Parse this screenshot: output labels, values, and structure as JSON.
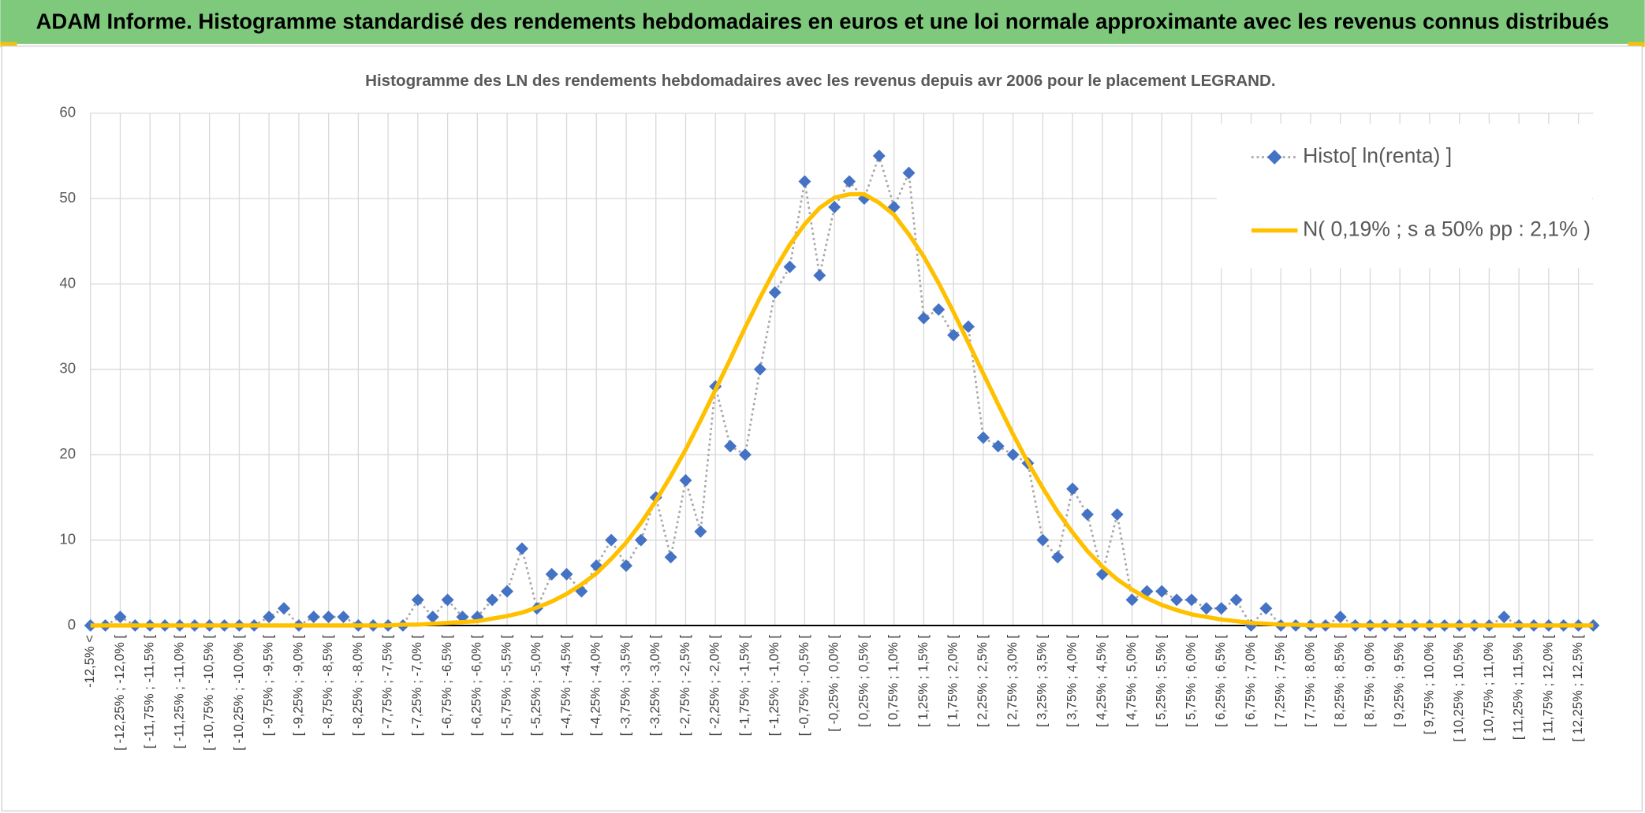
{
  "header": {
    "title": "ADAM Informe. Histogramme standardisé des rendements hebdomadaires en euros et une loi normale approximante avec les revenus connus distribués"
  },
  "chart_data": {
    "type": "line",
    "title": "Histogramme des LN des rendements hebdomadaires avec les revenus depuis avr 2006 pour le placement LEGRAND.",
    "categories": [
      "-12,5% <",
      null,
      "[ -12,25% ; -12,0% [",
      null,
      "[ -11,75% ; -11,5% [",
      null,
      "[ -11,25% ; -11,0% [",
      null,
      "[ -10,75% ; -10,5% [",
      null,
      "[ -10,25% ; -10,0% [",
      null,
      "[ -9,75% ; -9,5% [",
      null,
      "[ -9,25% ; -9,0% [",
      null,
      "[ -8,75% ; -8,5% [",
      null,
      "[ -8,25% ; -8,0% [",
      null,
      "[ -7,75% ; -7,5% [",
      null,
      "[ -7,25% ; -7,0% [",
      null,
      "[ -6,75% ; -6,5% [",
      null,
      "[ -6,25% ; -6,0% [",
      null,
      "[ -5,75% ; -5,5% [",
      null,
      "[ -5,25% ; -5,0% [",
      null,
      "[ -4,75% ; -4,5% [",
      null,
      "[ -4,25% ; -4,0% [",
      null,
      "[ -3,75% ; -3,5% [",
      null,
      "[ -3,25% ; -3,0% [",
      null,
      "[ -2,75% ; -2,5% [",
      null,
      "[ -2,25% ; -2,0% [",
      null,
      "[ -1,75% ; -1,5% [",
      null,
      "[ -1,25% ; -1,0% [",
      null,
      "[ -0,75% ; -0,5% [",
      null,
      "[ -0,25% ; 0,0% [",
      null,
      "[ 0,25% ; 0,5% [",
      null,
      "[ 0,75% ; 1,0% [",
      null,
      "[ 1,25% ; 1,5% [",
      null,
      "[ 1,75% ; 2,0% [",
      null,
      "[ 2,25% ; 2,5% [",
      null,
      "[ 2,75% ; 3,0% [",
      null,
      "[ 3,25% ; 3,5% [",
      null,
      "[ 3,75% ; 4,0% [",
      null,
      "[ 4,25% ; 4,5% [",
      null,
      "[ 4,75% ; 5,0% [",
      null,
      "[ 5,25% ; 5,5% [",
      null,
      "[ 5,75% ; 6,0% [",
      null,
      "[ 6,25% ; 6,5% [",
      null,
      "[ 6,75% ; 7,0% [",
      null,
      "[ 7,25% ; 7,5% [",
      null,
      "[ 7,75% ; 8,0% [",
      null,
      "[ 8,25% ; 8,5% [",
      null,
      "[ 8,75% ; 9,0% [",
      null,
      "[ 9,25% ; 9,5% [",
      null,
      "[ 9,75% ; 10,0% [",
      null,
      "[ 10,25% ; 10,5% [",
      null,
      "[ 10,75% ; 11,0% [",
      null,
      "[ 11,25% ; 11,5% [",
      null,
      "[ 11,75% ; 12,0% [",
      null,
      "[ 12,25% ; 12,5% [",
      null
    ],
    "series": [
      {
        "name": "Histo[ ln(renta) ]",
        "color": "#4472c4",
        "line_color": "#a6a6a6",
        "marker": "diamond",
        "values": [
          0,
          0,
          1,
          0,
          0,
          0,
          0,
          0,
          0,
          0,
          0,
          0,
          1,
          2,
          0,
          1,
          1,
          1,
          0,
          0,
          0,
          0,
          3,
          1,
          3,
          1,
          1,
          3,
          4,
          9,
          2,
          6,
          6,
          4,
          7,
          10,
          7,
          10,
          15,
          8,
          17,
          11,
          28,
          21,
          20,
          30,
          39,
          42,
          52,
          41,
          49,
          52,
          50,
          55,
          49,
          53,
          36,
          37,
          34,
          35,
          22,
          21,
          20,
          19,
          10,
          8,
          16,
          13,
          6,
          13,
          3,
          4,
          4,
          3,
          3,
          2,
          2,
          3,
          0,
          2,
          0,
          0,
          0,
          0,
          1,
          0,
          0,
          0,
          0,
          0,
          0,
          0,
          0,
          0,
          0,
          1,
          0,
          0,
          0,
          0,
          0,
          0
        ]
      },
      {
        "name": "N( 0,19% ; s a 50% pp : 2,1% )",
        "color": "#ffc000",
        "values": [
          0,
          0,
          0,
          0,
          0,
          0,
          0,
          0,
          0,
          0,
          0,
          0,
          0,
          0,
          0,
          0,
          0,
          0,
          0,
          0,
          0,
          0.1,
          0.1,
          0.2,
          0.3,
          0.4,
          0.5,
          0.8,
          1.1,
          1.5,
          2.1,
          2.8,
          3.7,
          4.8,
          6.1,
          7.8,
          9.7,
          12.0,
          14.6,
          17.5,
          20.6,
          24.0,
          27.6,
          31.2,
          34.9,
          38.4,
          41.7,
          44.6,
          47.0,
          48.9,
          50.1,
          50.5,
          50.5,
          49.5,
          48.1,
          45.8,
          43.2,
          40.1,
          36.7,
          33.1,
          29.5,
          25.9,
          22.4,
          19.1,
          16.1,
          13.3,
          10.9,
          8.7,
          6.9,
          5.4,
          4.2,
          3.2,
          2.4,
          1.8,
          1.3,
          1.0,
          0.7,
          0.5,
          0.3,
          0.2,
          0.1,
          0.1,
          0,
          0,
          0,
          0,
          0,
          0,
          0,
          0,
          0,
          0,
          0,
          0,
          0,
          0,
          0,
          0,
          0,
          0,
          0,
          0
        ]
      }
    ],
    "ylim": [
      0,
      60
    ],
    "yticks": [
      0,
      10,
      20,
      30,
      40,
      50,
      60
    ],
    "grid": true,
    "legend": "top-right"
  }
}
